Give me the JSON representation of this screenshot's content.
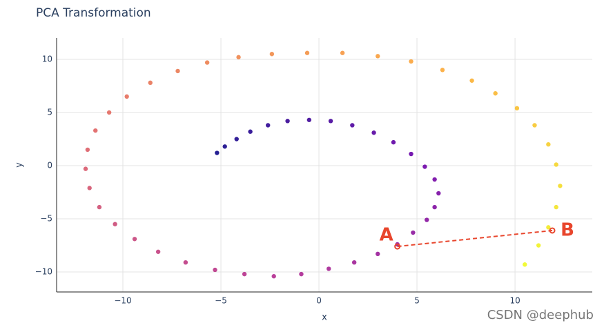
{
  "chart_data": {
    "type": "scatter",
    "title": "PCA Transformation",
    "x_label": "x",
    "y_label": "y",
    "x": [
      -5.2,
      -4.8,
      -4.2,
      -3.5,
      -2.6,
      -1.6,
      -0.5,
      0.6,
      1.7,
      2.8,
      3.8,
      4.7,
      5.4,
      5.9,
      6.1,
      5.9,
      5.5,
      4.8,
      4,
      3,
      1.8,
      0.5,
      -0.9,
      -2.3,
      -3.8,
      -5.3,
      -6.8,
      -8.2,
      -9.4,
      -10.4,
      -11.2,
      -11.7,
      -11.9,
      -11.8,
      -11.4,
      -10.7,
      -9.8,
      -8.6,
      -7.2,
      -5.7,
      -4.1,
      -2.4,
      -0.6,
      1.2,
      3,
      4.7,
      6.3,
      7.8,
      9,
      10.1,
      11,
      11.7,
      12.1,
      12.3,
      12.1,
      11.7,
      11.2,
      10.5
    ],
    "values": [
      1.2,
      1.8,
      2.5,
      3.2,
      3.8,
      4.2,
      4.3,
      4.2,
      3.8,
      3.1,
      2.2,
      1.1,
      -0.1,
      -1.3,
      -2.6,
      -3.9,
      -5.1,
      -6.3,
      -7.4,
      -8.3,
      -9.1,
      -9.7,
      -10.2,
      -10.4,
      -10.2,
      -9.8,
      -9.1,
      -8.1,
      -6.9,
      -5.5,
      -3.9,
      -2.1,
      -0.3,
      1.5,
      3.3,
      5,
      6.5,
      7.8,
      8.9,
      9.7,
      10.2,
      10.5,
      10.6,
      10.6,
      10.3,
      9.8,
      9,
      8,
      6.8,
      5.4,
      3.8,
      2,
      0.1,
      -1.9,
      -3.9,
      -5.8,
      -7.5,
      -9.3
    ],
    "colorscale": [
      "#0d0887",
      "#6a00a8",
      "#b12a90",
      "#e16462",
      "#fca636",
      "#f0f921"
    ],
    "xlim": [
      -13.38,
      13.94
    ],
    "ylim": [
      -11.88,
      12.01
    ],
    "xticks": [
      {
        "value": -10,
        "label": "−10"
      },
      {
        "value": -5,
        "label": "−5"
      },
      0,
      5,
      10
    ],
    "yticks": [
      {
        "value": -10,
        "label": "−10"
      },
      {
        "value": -5,
        "label": "−5"
      },
      0,
      5,
      10
    ],
    "grid": true,
    "annotations": [
      {
        "text": "A",
        "x": 4,
        "y": -7.6
      },
      {
        "text": "B",
        "x": 11.9,
        "y": -6.1
      }
    ],
    "annotation_color": "#e8452c",
    "watermark": "CSDN @deephub"
  }
}
